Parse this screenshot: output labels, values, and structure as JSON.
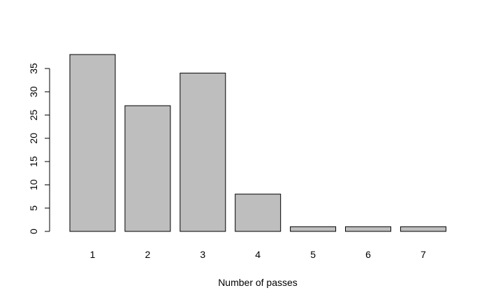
{
  "chart_data": {
    "type": "bar",
    "categories": [
      "1",
      "2",
      "3",
      "4",
      "5",
      "6",
      "7"
    ],
    "values": [
      38,
      27,
      34,
      8,
      1,
      1,
      1
    ],
    "title": "",
    "xlabel": "Number of passes",
    "ylabel": "",
    "ylim": [
      0,
      38
    ],
    "yticks": [
      0,
      5,
      10,
      15,
      20,
      25,
      30,
      35
    ],
    "grid": false,
    "legend": "none",
    "colors": {
      "bar_fill": "#bebebe",
      "bar_stroke": "#000000"
    }
  }
}
